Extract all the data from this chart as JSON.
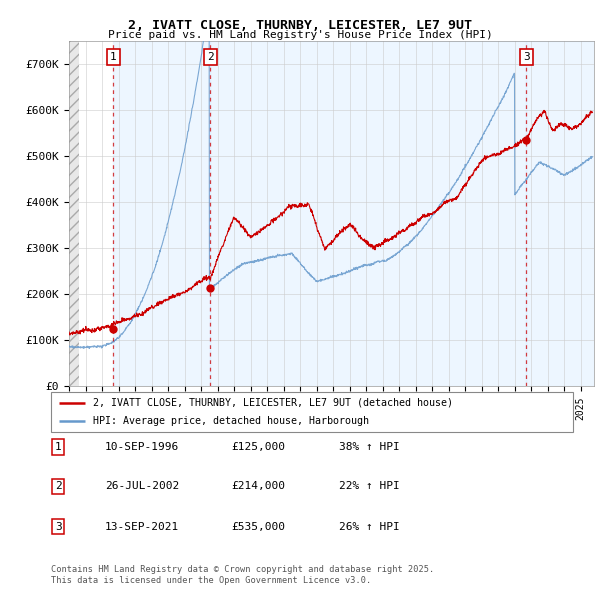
{
  "title_line1": "2, IVATT CLOSE, THURNBY, LEICESTER, LE7 9UT",
  "title_line2": "Price paid vs. HM Land Registry's House Price Index (HPI)",
  "ylim": [
    0,
    750000
  ],
  "yticks": [
    0,
    100000,
    200000,
    300000,
    400000,
    500000,
    600000,
    700000
  ],
  "ytick_labels": [
    "£0",
    "£100K",
    "£200K",
    "£300K",
    "£400K",
    "£500K",
    "£600K",
    "£700K"
  ],
  "xlim_start": 1994.0,
  "xlim_end": 2025.8,
  "sale_dates": [
    1996.69,
    2002.57,
    2021.71
  ],
  "sale_prices": [
    125000,
    214000,
    535000
  ],
  "sale_labels": [
    "1",
    "2",
    "3"
  ],
  "legend_red": "2, IVATT CLOSE, THURNBY, LEICESTER, LE7 9UT (detached house)",
  "legend_blue": "HPI: Average price, detached house, Harborough",
  "table_data": [
    [
      "1",
      "10-SEP-1996",
      "£125,000",
      "38% ↑ HPI"
    ],
    [
      "2",
      "26-JUL-2002",
      "£214,000",
      "22% ↑ HPI"
    ],
    [
      "3",
      "13-SEP-2021",
      "£535,000",
      "26% ↑ HPI"
    ]
  ],
  "footer": "Contains HM Land Registry data © Crown copyright and database right 2025.\nThis data is licensed under the Open Government Licence v3.0.",
  "red_color": "#cc0000",
  "blue_color": "#6699cc",
  "blue_fill": "#ddeeff",
  "hatch_color": "#cccccc",
  "grid_color": "#cccccc"
}
